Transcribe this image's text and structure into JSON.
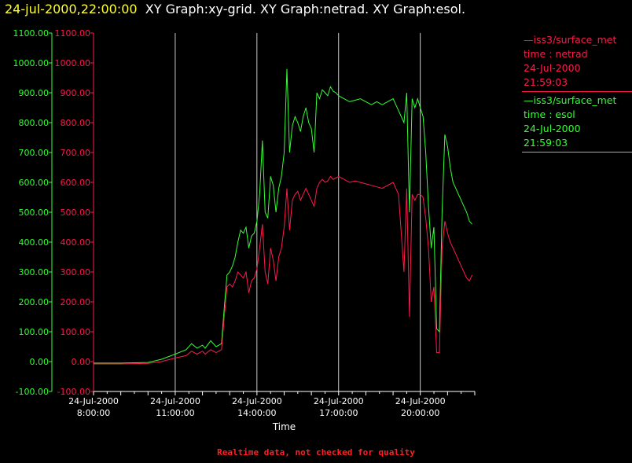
{
  "header": {
    "timestamp": "24-jul-2000,22:00:00",
    "graphs": "XY Graph:xy-grid.  XY Graph:netrad.  XY Graph:esol."
  },
  "legend": [
    {
      "name": "iss3/surface_met",
      "var": "time : netrad",
      "date": "24-Jul-2000",
      "time": "21:59:03",
      "color": "#ff1a4d"
    },
    {
      "name": "iss3/surface_met",
      "var": "time : esol",
      "date": "24-Jul-2000",
      "time": "21:59:03",
      "color": "#33ff33"
    }
  ],
  "footer": "Realtime data, not checked for quality",
  "colors": {
    "netrad": "#ff1a4d",
    "esol": "#33ff33",
    "grid": "#ffffff",
    "axis_left": "#33ff33",
    "axis_right": "#ff1a4d"
  },
  "chart_data": {
    "type": "line",
    "xlabel": "Time",
    "x_ticks": [
      {
        "hour": 8,
        "date": "24-Jul-2000",
        "time": "8:00:00"
      },
      {
        "hour": 11,
        "date": "24-Jul-2000",
        "time": "11:00:00"
      },
      {
        "hour": 14,
        "date": "24-Jul-2000",
        "time": "14:00:00"
      },
      {
        "hour": 17,
        "date": "24-Jul-2000",
        "time": "17:00:00"
      },
      {
        "hour": 20,
        "date": "24-Jul-2000",
        "time": "20:00:00"
      }
    ],
    "xlim_hours": [
      8,
      22
    ],
    "ylim": [
      -100,
      1100
    ],
    "y_ticks": [
      "1100.00",
      "1000.00",
      "900.00",
      "800.00",
      "700.00",
      "600.00",
      "500.00",
      "400.00",
      "300.00",
      "200.00",
      "100.00",
      "0.00",
      "-100.00"
    ],
    "grid_x": true,
    "series": [
      {
        "key": "esol",
        "x_hours": [
          8.0,
          9.0,
          10.0,
          10.5,
          11.0,
          11.4,
          11.6,
          11.8,
          12.0,
          12.1,
          12.3,
          12.5,
          12.6,
          12.7,
          12.8,
          12.9,
          13.0,
          13.1,
          13.2,
          13.3,
          13.4,
          13.5,
          13.6,
          13.7,
          13.8,
          13.9,
          14.0,
          14.1,
          14.2,
          14.3,
          14.4,
          14.5,
          14.6,
          14.7,
          14.8,
          14.9,
          15.0,
          15.1,
          15.2,
          15.3,
          15.4,
          15.5,
          15.6,
          15.7,
          15.8,
          15.9,
          16.0,
          16.1,
          16.2,
          16.3,
          16.4,
          16.5,
          16.6,
          16.7,
          16.8,
          16.9,
          17.0,
          17.2,
          17.4,
          17.6,
          17.8,
          18.0,
          18.2,
          18.4,
          18.6,
          18.8,
          19.0,
          19.2,
          19.4,
          19.5,
          19.6,
          19.7,
          19.8,
          19.9,
          20.0,
          20.1,
          20.2,
          20.3,
          20.4,
          20.5,
          20.6,
          20.7,
          20.8,
          20.9,
          21.0,
          21.1,
          21.2,
          21.3,
          21.4,
          21.5,
          21.6,
          21.7,
          21.8,
          21.9
        ],
        "values": [
          -5,
          -5,
          -3,
          8,
          25,
          40,
          60,
          45,
          55,
          45,
          70,
          50,
          55,
          60,
          180,
          290,
          300,
          320,
          350,
          400,
          440,
          430,
          450,
          380,
          420,
          430,
          470,
          560,
          740,
          500,
          480,
          620,
          590,
          500,
          580,
          620,
          700,
          980,
          700,
          790,
          820,
          800,
          770,
          820,
          850,
          800,
          780,
          700,
          900,
          880,
          910,
          900,
          890,
          920,
          905,
          900,
          890,
          880,
          870,
          875,
          880,
          870,
          860,
          870,
          860,
          870,
          880,
          840,
          800,
          900,
          500,
          880,
          850,
          880,
          850,
          820,
          700,
          520,
          380,
          450,
          110,
          100,
          500,
          760,
          720,
          650,
          600,
          580,
          560,
          540,
          520,
          500,
          470,
          460
        ]
      },
      {
        "key": "netrad",
        "x_hours": [
          8.0,
          9.0,
          10.0,
          10.5,
          11.0,
          11.4,
          11.6,
          11.8,
          12.0,
          12.1,
          12.3,
          12.5,
          12.6,
          12.7,
          12.8,
          12.9,
          13.0,
          13.1,
          13.2,
          13.3,
          13.4,
          13.5,
          13.6,
          13.7,
          13.8,
          13.9,
          14.0,
          14.1,
          14.2,
          14.3,
          14.4,
          14.5,
          14.6,
          14.7,
          14.8,
          14.9,
          15.0,
          15.1,
          15.2,
          15.3,
          15.4,
          15.5,
          15.6,
          15.7,
          15.8,
          15.9,
          16.0,
          16.1,
          16.2,
          16.3,
          16.4,
          16.5,
          16.6,
          16.7,
          16.8,
          16.9,
          17.0,
          17.2,
          17.4,
          17.6,
          17.8,
          18.0,
          18.2,
          18.4,
          18.6,
          18.8,
          19.0,
          19.2,
          19.4,
          19.5,
          19.6,
          19.7,
          19.8,
          19.9,
          20.0,
          20.1,
          20.2,
          20.3,
          20.4,
          20.5,
          20.6,
          20.7,
          20.8,
          20.9,
          21.0,
          21.1,
          21.2,
          21.3,
          21.4,
          21.5,
          21.6,
          21.7,
          21.8,
          21.9
        ],
        "values": [
          -8,
          -8,
          -6,
          0,
          12,
          20,
          35,
          25,
          35,
          25,
          40,
          30,
          35,
          40,
          150,
          250,
          260,
          250,
          270,
          300,
          290,
          280,
          300,
          230,
          270,
          280,
          310,
          380,
          460,
          300,
          260,
          380,
          340,
          270,
          350,
          380,
          450,
          580,
          440,
          540,
          560,
          570,
          540,
          560,
          580,
          560,
          540,
          520,
          580,
          600,
          610,
          600,
          605,
          620,
          610,
          615,
          620,
          610,
          600,
          605,
          600,
          595,
          590,
          585,
          580,
          590,
          600,
          560,
          300,
          580,
          150,
          560,
          540,
          560,
          560,
          550,
          480,
          380,
          200,
          250,
          30,
          30,
          380,
          470,
          430,
          400,
          380,
          360,
          340,
          320,
          300,
          280,
          270,
          290
        ]
      }
    ]
  }
}
